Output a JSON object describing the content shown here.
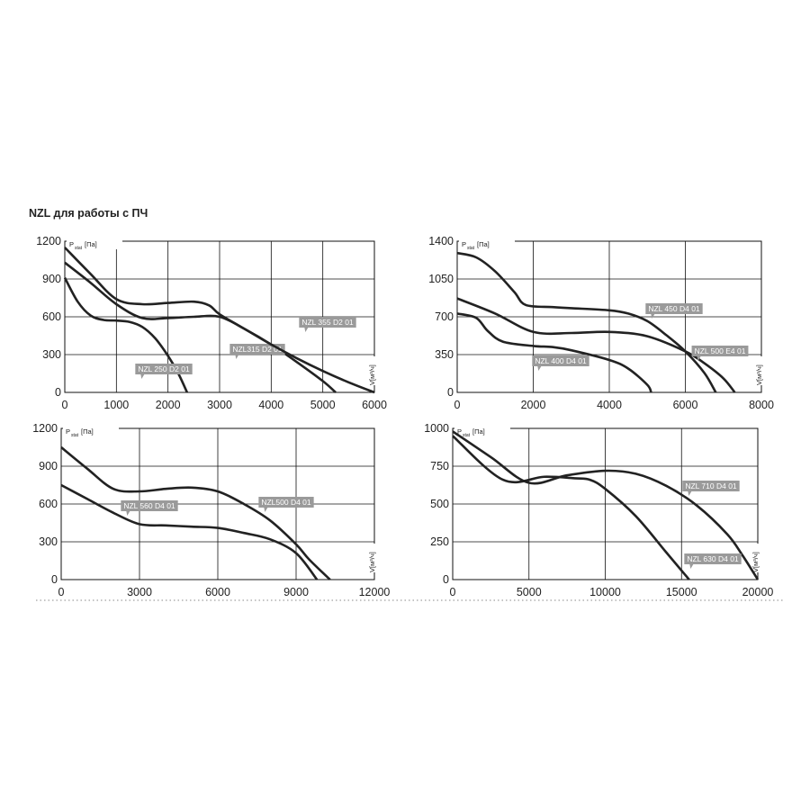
{
  "title": "NZL для работы с ПЧ",
  "chart_data": [
    {
      "type": "line",
      "ylabel_symbol": "P",
      "ylabel_subscript": "stat",
      "ylabel_unit": "[Па]",
      "xlabel": "V[м³/ч]",
      "xlim": [
        0,
        6000
      ],
      "xticks": [
        0,
        1000,
        2000,
        3000,
        4000,
        5000,
        6000
      ],
      "ylim": [
        0,
        1200
      ],
      "yticks": [
        0,
        300,
        600,
        900,
        1200
      ],
      "grid": true,
      "series": [
        {
          "name": "NZL 250 D2 01",
          "color": "#222222",
          "x": [
            0,
            250,
            500,
            750,
            1000,
            1250,
            1500,
            1750,
            2000,
            2200,
            2370
          ],
          "values": [
            910,
            720,
            610,
            575,
            570,
            560,
            520,
            430,
            290,
            150,
            0
          ]
        },
        {
          "name": "NZL315 D2 01",
          "color": "#222222",
          "x": [
            0,
            500,
            1000,
            1500,
            2000,
            2500,
            3000,
            3500,
            4000,
            4500,
            5000,
            5250
          ],
          "values": [
            1030,
            870,
            700,
            590,
            590,
            600,
            600,
            500,
            380,
            240,
            90,
            0
          ]
        },
        {
          "name": "NZL 355 D2 01",
          "color": "#222222",
          "x": [
            0,
            500,
            1000,
            1500,
            2000,
            2500,
            2800,
            3000,
            3500,
            4000,
            4500,
            5000,
            5500,
            6000
          ],
          "values": [
            1150,
            940,
            740,
            700,
            710,
            720,
            690,
            620,
            500,
            380,
            270,
            170,
            80,
            0
          ]
        }
      ]
    },
    {
      "type": "line",
      "ylabel_symbol": "P",
      "ylabel_subscript": "stat",
      "ylabel_unit": "[Па]",
      "xlabel": "V[м³/ч]",
      "xlim": [
        0,
        8000
      ],
      "xticks": [
        0,
        2000,
        4000,
        6000,
        8000
      ],
      "ylim": [
        0,
        1400
      ],
      "yticks": [
        0,
        350,
        700,
        1050,
        1400
      ],
      "grid": true,
      "series": [
        {
          "name": "NZL 450 D4 01",
          "color": "#222222",
          "x": [
            0,
            500,
            1000,
            1500,
            1800,
            2500,
            3000,
            4000,
            4500,
            5000,
            5500,
            6000,
            6500,
            6800
          ],
          "values": [
            1290,
            1250,
            1120,
            930,
            810,
            790,
            780,
            760,
            730,
            660,
            530,
            380,
            180,
            0
          ]
        },
        {
          "name": "NZL 500 E4 01",
          "color": "#222222",
          "x": [
            0,
            1000,
            2000,
            3000,
            4000,
            5000,
            6000,
            6500,
            7000,
            7300
          ],
          "values": [
            870,
            730,
            560,
            550,
            560,
            520,
            380,
            270,
            130,
            0
          ]
        },
        {
          "name": "NZL 400 D4 01",
          "color": "#222222",
          "x": [
            0,
            500,
            800,
            1200,
            2000,
            2500,
            3000,
            4000,
            4500,
            5000,
            5100
          ],
          "values": [
            730,
            690,
            570,
            470,
            430,
            420,
            390,
            300,
            220,
            70,
            0
          ]
        }
      ]
    },
    {
      "type": "line",
      "ylabel_symbol": "P",
      "ylabel_subscript": "stat",
      "ylabel_unit": "[Па]",
      "xlabel": "V[м³/ч]",
      "xlim": [
        0,
        12000
      ],
      "xticks": [
        0,
        3000,
        6000,
        9000,
        12000
      ],
      "ylim": [
        0,
        1200
      ],
      "yticks": [
        0,
        300,
        600,
        900,
        1200
      ],
      "grid": true,
      "series": [
        {
          "name": "NZL500 D4 01",
          "color": "#222222",
          "x": [
            0,
            1000,
            2000,
            3000,
            4000,
            5000,
            6000,
            7000,
            8000,
            9000,
            9500,
            10300
          ],
          "values": [
            1050,
            880,
            720,
            700,
            720,
            730,
            700,
            600,
            470,
            280,
            160,
            0
          ]
        },
        {
          "name": "NZL 560 D4 01",
          "color": "#222222",
          "x": [
            0,
            1000,
            2000,
            3000,
            4000,
            5000,
            6000,
            7000,
            8000,
            9000,
            9800
          ],
          "values": [
            750,
            640,
            530,
            440,
            430,
            420,
            410,
            370,
            320,
            210,
            0
          ]
        }
      ]
    },
    {
      "type": "line",
      "ylabel_symbol": "P",
      "ylabel_subscript": "stat",
      "ylabel_unit": "[Па]",
      "xlabel": "V[м³/ч]",
      "xlim": [
        0,
        20000
      ],
      "xticks": [
        0,
        5000,
        10000,
        15000,
        20000
      ],
      "ylim": [
        0,
        1000
      ],
      "yticks": [
        0,
        250,
        500,
        750,
        1000
      ],
      "grid": true,
      "series": [
        {
          "name": "NZL 710 D4 01",
          "color": "#222222",
          "x": [
            0,
            2500,
            5000,
            7500,
            10000,
            12000,
            14000,
            16000,
            18000,
            19000,
            20000
          ],
          "values": [
            980,
            810,
            640,
            690,
            720,
            700,
            620,
            490,
            300,
            160,
            0
          ]
        },
        {
          "name": "NZL 630 D4 01",
          "color": "#222222",
          "x": [
            0,
            3300,
            6000,
            8000,
            9000,
            10000,
            12000,
            14000,
            15500
          ],
          "values": [
            950,
            660,
            680,
            670,
            660,
            600,
            420,
            180,
            0
          ]
        }
      ]
    }
  ]
}
